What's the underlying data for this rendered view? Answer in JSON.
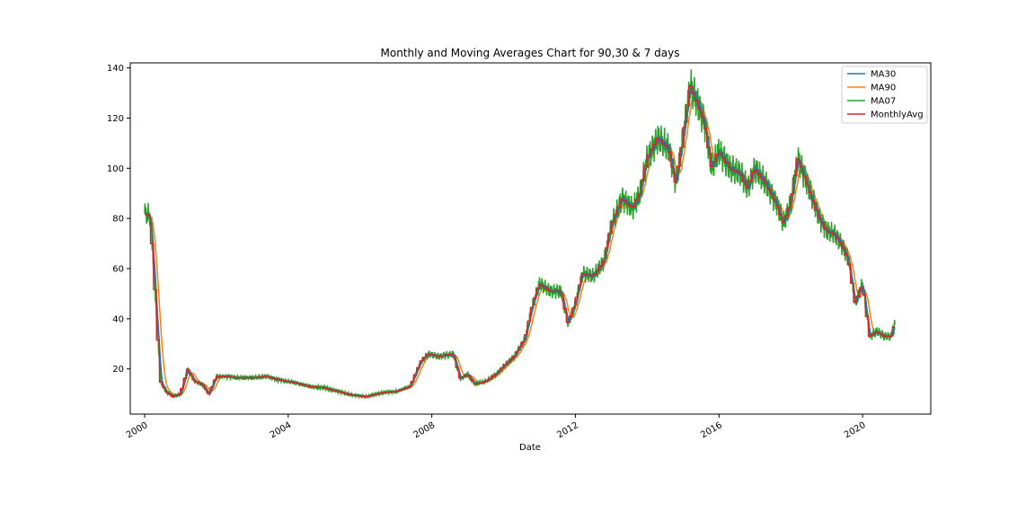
{
  "chart_data": {
    "type": "line",
    "title": "Monthly and Moving Averages Chart for 90,30 & 7 days",
    "xlabel": "Date",
    "ylabel": "",
    "xlim": [
      1999.6,
      2021.9
    ],
    "ylim": [
      2,
      142
    ],
    "x_ticks": [
      2000,
      2004,
      2008,
      2012,
      2016,
      2020
    ],
    "x_tick_labels": [
      "2000",
      "2004",
      "2008",
      "2012",
      "2016",
      "2020"
    ],
    "y_ticks": [
      20,
      40,
      60,
      80,
      100,
      120,
      140
    ],
    "y_tick_labels": [
      "20",
      "40",
      "60",
      "80",
      "100",
      "120",
      "140"
    ],
    "grid": false,
    "legend_position": "top-right",
    "colors": {
      "MA30": "#1f77b4",
      "MA90": "#ff7f0e",
      "MA07": "#2ca02c",
      "MonthlyAvg": "#d62728"
    },
    "monthly_points": [
      [
        2000.0,
        82
      ],
      [
        2000.15,
        81
      ],
      [
        2000.25,
        62
      ],
      [
        2000.35,
        37
      ],
      [
        2000.45,
        15
      ],
      [
        2000.6,
        11
      ],
      [
        2000.8,
        9
      ],
      [
        2001.0,
        10
      ],
      [
        2001.2,
        20
      ],
      [
        2001.4,
        15
      ],
      [
        2001.6,
        14
      ],
      [
        2001.8,
        10
      ],
      [
        2002.0,
        17
      ],
      [
        2002.3,
        17
      ],
      [
        2002.6,
        16.5
      ],
      [
        2003.0,
        16.5
      ],
      [
        2003.4,
        17
      ],
      [
        2003.8,
        15.5
      ],
      [
        2004.2,
        14.5
      ],
      [
        2004.6,
        13
      ],
      [
        2005.0,
        12.5
      ],
      [
        2005.4,
        11
      ],
      [
        2005.8,
        9.5
      ],
      [
        2006.2,
        9
      ],
      [
        2006.6,
        10.5
      ],
      [
        2007.0,
        11
      ],
      [
        2007.4,
        13
      ],
      [
        2007.7,
        23
      ],
      [
        2007.9,
        26
      ],
      [
        2008.2,
        25
      ],
      [
        2008.6,
        26
      ],
      [
        2008.8,
        16
      ],
      [
        2009.0,
        18
      ],
      [
        2009.2,
        14
      ],
      [
        2009.5,
        15
      ],
      [
        2009.8,
        18
      ],
      [
        2010.0,
        21
      ],
      [
        2010.3,
        25
      ],
      [
        2010.6,
        32
      ],
      [
        2010.8,
        45
      ],
      [
        2011.0,
        54
      ],
      [
        2011.3,
        51
      ],
      [
        2011.6,
        51
      ],
      [
        2011.8,
        38
      ],
      [
        2012.0,
        46
      ],
      [
        2012.2,
        58
      ],
      [
        2012.5,
        57
      ],
      [
        2012.8,
        63
      ],
      [
        2013.0,
        77
      ],
      [
        2013.3,
        88
      ],
      [
        2013.6,
        84
      ],
      [
        2013.8,
        90
      ],
      [
        2014.0,
        104
      ],
      [
        2014.3,
        112
      ],
      [
        2014.6,
        108
      ],
      [
        2014.8,
        94
      ],
      [
        2015.0,
        112
      ],
      [
        2015.2,
        133
      ],
      [
        2015.4,
        126
      ],
      [
        2015.6,
        118
      ],
      [
        2015.8,
        100
      ],
      [
        2016.0,
        107
      ],
      [
        2016.3,
        100
      ],
      [
        2016.6,
        98
      ],
      [
        2016.8,
        92
      ],
      [
        2017.0,
        100
      ],
      [
        2017.3,
        94
      ],
      [
        2017.6,
        86
      ],
      [
        2017.8,
        78
      ],
      [
        2018.0,
        86
      ],
      [
        2018.2,
        104
      ],
      [
        2018.4,
        96
      ],
      [
        2018.6,
        88
      ],
      [
        2018.8,
        80
      ],
      [
        2019.0,
        75
      ],
      [
        2019.2,
        74
      ],
      [
        2019.4,
        70
      ],
      [
        2019.6,
        64
      ],
      [
        2019.8,
        46
      ],
      [
        2020.0,
        54
      ],
      [
        2020.2,
        33
      ],
      [
        2020.4,
        35
      ],
      [
        2020.6,
        33
      ],
      [
        2020.8,
        33
      ],
      [
        2020.9,
        38
      ]
    ]
  }
}
